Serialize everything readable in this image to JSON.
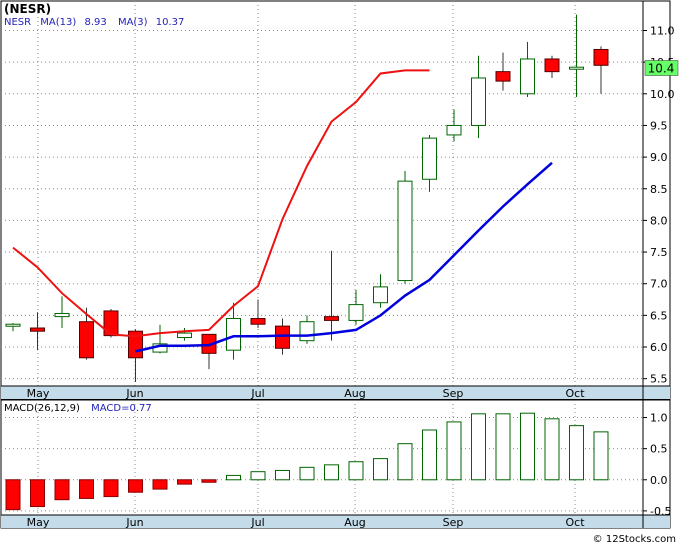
{
  "header": {
    "symbol": "(NESR)",
    "legend_symbol": "NESR",
    "ma13_label": "MA(13)",
    "ma13_value": "8.93",
    "ma3_label": "MA(3)",
    "ma3_value": "10.37",
    "price_badge": "10.4"
  },
  "macd_header": {
    "params": "MACD(26,12,9)",
    "value_label": "MACD=0.77"
  },
  "footer": {
    "copyright": "© 12Stocks.com"
  },
  "colors": {
    "up_candle": "#006400",
    "down_candle": "#ff0000",
    "ma13": "#0000dd",
    "ma3": "#ee1111",
    "axis_band": "#c4dcea",
    "grid": "#8a8a8a",
    "badge": "#66ff66",
    "legend_text": "#2222bb"
  },
  "chart_data": [
    {
      "type": "candlestick",
      "title": "(NESR)",
      "ylim": [
        5.4,
        11.45
      ],
      "y_ticks": [
        5.5,
        6.0,
        6.5,
        7.0,
        7.5,
        8.0,
        8.5,
        9.0,
        9.5,
        10.0,
        10.5,
        11.0
      ],
      "y_tick_labels": [
        "5.5",
        "6.0",
        "6.5",
        "7.0",
        "7.5",
        "8.0",
        "8.5",
        "9.0",
        "9.5",
        "10.0",
        "10.5",
        "11.0"
      ],
      "x_labels": [
        "May",
        "Jun",
        "Jul",
        "Aug",
        "Sep",
        "Oct"
      ],
      "grid": true,
      "candles": [
        {
          "o": 6.33,
          "h": 6.38,
          "l": 6.25,
          "c": 6.36
        },
        {
          "o": 6.3,
          "h": 6.55,
          "l": 5.95,
          "c": 6.25
        },
        {
          "o": 6.48,
          "h": 6.8,
          "l": 6.3,
          "c": 6.53
        },
        {
          "o": 6.4,
          "h": 6.62,
          "l": 5.8,
          "c": 5.83
        },
        {
          "o": 6.57,
          "h": 6.6,
          "l": 6.15,
          "c": 6.18
        },
        {
          "o": 6.25,
          "h": 6.28,
          "l": 5.45,
          "c": 5.83
        },
        {
          "o": 5.92,
          "h": 6.35,
          "l": 5.9,
          "c": 6.05
        },
        {
          "o": 6.15,
          "h": 6.3,
          "l": 6.1,
          "c": 6.22
        },
        {
          "o": 6.2,
          "h": 6.2,
          "l": 5.65,
          "c": 5.9
        },
        {
          "o": 5.95,
          "h": 6.7,
          "l": 5.8,
          "c": 6.45
        },
        {
          "o": 6.45,
          "h": 6.75,
          "l": 6.3,
          "c": 6.36
        },
        {
          "o": 6.33,
          "h": 6.45,
          "l": 5.88,
          "c": 5.98
        },
        {
          "o": 6.1,
          "h": 6.5,
          "l": 6.05,
          "c": 6.4
        },
        {
          "o": 6.48,
          "h": 7.52,
          "l": 6.1,
          "c": 6.42
        },
        {
          "o": 6.42,
          "h": 6.9,
          "l": 6.35,
          "c": 6.67
        },
        {
          "o": 6.7,
          "h": 7.15,
          "l": 6.62,
          "c": 6.95
        },
        {
          "o": 7.05,
          "h": 8.78,
          "l": 7.0,
          "c": 8.62
        },
        {
          "o": 8.65,
          "h": 9.35,
          "l": 8.45,
          "c": 9.3
        },
        {
          "o": 9.35,
          "h": 9.75,
          "l": 9.25,
          "c": 9.5
        },
        {
          "o": 9.5,
          "h": 10.6,
          "l": 9.3,
          "c": 10.25
        },
        {
          "o": 10.35,
          "h": 10.65,
          "l": 10.05,
          "c": 10.2
        },
        {
          "o": 10.0,
          "h": 10.82,
          "l": 9.95,
          "c": 10.55
        },
        {
          "o": 10.55,
          "h": 10.6,
          "l": 10.25,
          "c": 10.35
        },
        {
          "o": 10.4,
          "h": 11.25,
          "l": 9.95,
          "c": 10.42
        },
        {
          "o": 10.7,
          "h": 10.75,
          "l": 10.0,
          "c": 10.45
        }
      ],
      "series": [
        {
          "name": "MA(13)",
          "start_index": 5,
          "values": [
            5.93,
            6.02,
            6.02,
            6.03,
            6.17,
            6.17,
            6.18,
            6.18,
            6.22,
            6.27,
            6.5,
            6.81,
            7.06,
            7.45,
            7.84,
            8.22,
            8.57,
            8.91
          ]
        },
        {
          "name": "MA(3)",
          "start_index": 0,
          "values": [
            7.57,
            7.26,
            6.85,
            6.52,
            6.2,
            6.17,
            6.22,
            6.25,
            6.27,
            6.65,
            6.96,
            8.02,
            8.86,
            9.56,
            9.87,
            10.32,
            10.37,
            10.37
          ]
        }
      ],
      "last_value": 10.4
    },
    {
      "type": "bar",
      "title": "MACD(26,12,9)",
      "ylim": [
        -0.55,
        1.25
      ],
      "y_ticks": [
        -0.5,
        0.0,
        0.5,
        1.0
      ],
      "y_tick_labels": [
        "-0.5",
        "0.0",
        "0.5",
        "1.0"
      ],
      "x_labels": [
        "May",
        "Jun",
        "Jul",
        "Aug",
        "Sep",
        "Oct"
      ],
      "values": [
        -0.48,
        -0.43,
        -0.32,
        -0.3,
        -0.27,
        -0.2,
        -0.15,
        -0.07,
        -0.04,
        0.07,
        0.13,
        0.15,
        0.2,
        0.24,
        0.29,
        0.34,
        0.58,
        0.8,
        0.93,
        1.06,
        1.06,
        1.07,
        0.98,
        0.87,
        0.77
      ],
      "last_value": 0.77
    }
  ]
}
